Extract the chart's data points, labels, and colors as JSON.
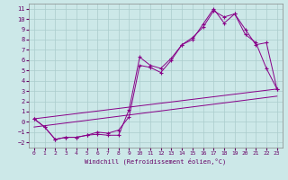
{
  "xlabel": "Windchill (Refroidissement éolien,°C)",
  "background_color": "#cce8e8",
  "grid_color": "#aacccc",
  "line_color": "#880088",
  "xlim": [
    -0.5,
    23.5
  ],
  "ylim": [
    -2.5,
    11.5
  ],
  "xticks": [
    0,
    1,
    2,
    3,
    4,
    5,
    6,
    7,
    8,
    9,
    10,
    11,
    12,
    13,
    14,
    15,
    16,
    17,
    18,
    19,
    20,
    21,
    22,
    23
  ],
  "yticks": [
    -2,
    -1,
    0,
    1,
    2,
    3,
    4,
    5,
    6,
    7,
    8,
    9,
    10,
    11
  ],
  "series1_x": [
    0,
    1,
    2,
    3,
    4,
    5,
    6,
    7,
    8,
    9,
    10,
    11,
    12,
    13,
    14,
    15,
    16,
    17,
    18,
    19,
    20,
    21,
    22,
    23
  ],
  "series1_y": [
    0.3,
    -0.5,
    -1.7,
    -1.5,
    -1.5,
    -1.3,
    -1.2,
    -1.3,
    -1.3,
    1.2,
    6.3,
    5.5,
    5.2,
    6.2,
    7.5,
    8.0,
    9.5,
    11.0,
    9.6,
    10.5,
    8.5,
    7.7,
    5.2,
    3.2
  ],
  "series2_x": [
    0,
    1,
    2,
    3,
    4,
    5,
    6,
    7,
    8,
    9,
    10,
    11,
    12,
    13,
    14,
    15,
    16,
    17,
    18,
    19,
    20,
    21,
    22,
    23
  ],
  "series2_y": [
    0.3,
    -0.5,
    -1.7,
    -1.5,
    -1.5,
    -1.3,
    -1.0,
    -1.1,
    -0.8,
    0.5,
    5.5,
    5.3,
    4.8,
    6.0,
    7.5,
    8.2,
    9.2,
    10.8,
    10.2,
    10.5,
    9.0,
    7.5,
    7.7,
    3.2
  ],
  "series3_x": [
    0,
    23
  ],
  "series3_y": [
    0.3,
    3.2
  ],
  "series4_x": [
    0,
    23
  ],
  "series4_y": [
    -0.5,
    2.5
  ]
}
